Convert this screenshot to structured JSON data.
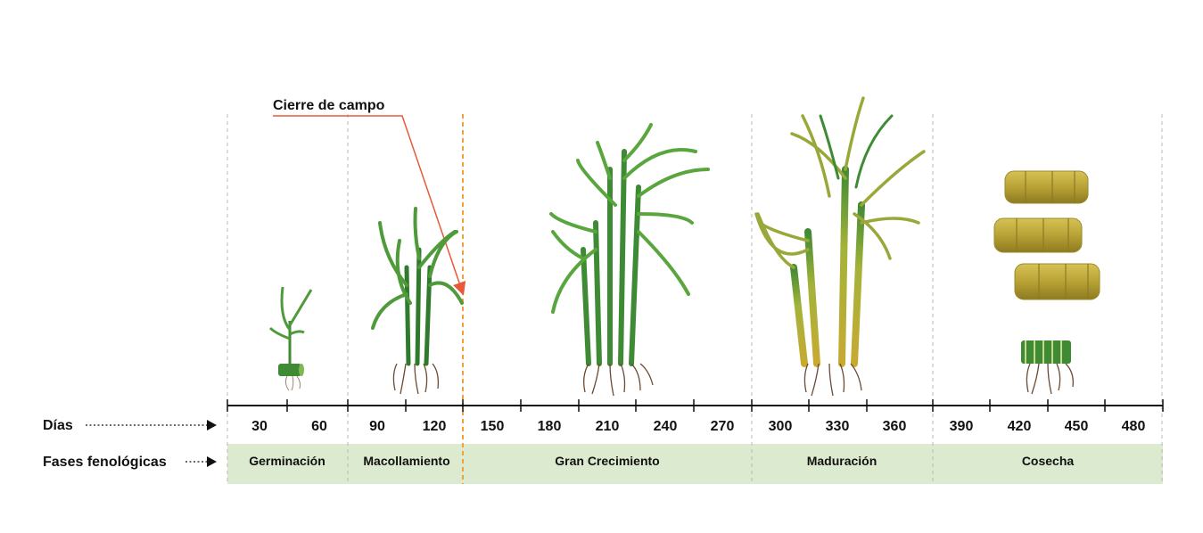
{
  "callout": {
    "label": "Cierre de campo",
    "color": "#e8593a"
  },
  "rows": {
    "days_label": "Días",
    "phases_label": "Fases fenológicas"
  },
  "days": [
    "30",
    "60",
    "90",
    "120",
    "150",
    "180",
    "210",
    "240",
    "270",
    "300",
    "330",
    "360",
    "390",
    "420",
    "450",
    "480"
  ],
  "phases": [
    {
      "name": "Germinación"
    },
    {
      "name": "Macollamiento"
    },
    {
      "name": "Gran Crecimiento"
    },
    {
      "name": "Maduración"
    },
    {
      "name": "Cosecha"
    }
  ],
  "colors": {
    "phase_band": "#dcebcf",
    "divider": "#b9b9b9",
    "closure_line": "#f0a23a",
    "leaf_green": "#4f9a3a",
    "leaf_dark": "#2f7a2c",
    "stalk_green": "#3f8a34",
    "mature_stalk": "#c9b63a",
    "root": "#6b4a32"
  },
  "icons": [
    "sprout-icon",
    "tillering-plant-icon",
    "tall-cane-icon",
    "mature-cane-icon",
    "cut-stalks-icon",
    "stump-icon"
  ]
}
